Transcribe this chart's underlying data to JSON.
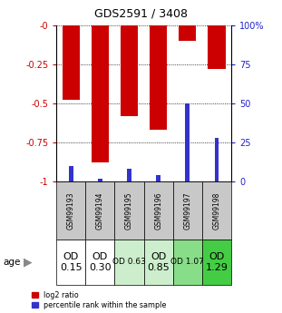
{
  "title": "GDS2591 / 3408",
  "samples": [
    "GSM99193",
    "GSM99194",
    "GSM99195",
    "GSM99196",
    "GSM99197",
    "GSM99198"
  ],
  "log2_ratios": [
    -0.48,
    -0.88,
    -0.58,
    -0.67,
    -0.1,
    -0.28
  ],
  "percentile_ranks": [
    10,
    2,
    8,
    4,
    50,
    28
  ],
  "ylim_left": [
    -1.0,
    0.0
  ],
  "ylim_right": [
    0,
    100
  ],
  "yticks_left": [
    0.0,
    -0.25,
    -0.5,
    -0.75,
    -1.0
  ],
  "yticks_right": [
    0,
    25,
    50,
    75,
    100
  ],
  "ytick_labels_left": [
    "-0",
    "-0.25",
    "-0.5",
    "-0.75",
    "-1"
  ],
  "ytick_labels_right": [
    "0",
    "25",
    "50",
    "75",
    "100%"
  ],
  "bar_color_red": "#cc0000",
  "bar_color_blue": "#3333cc",
  "grid_color": "#000000",
  "sample_bg_color": "#c8c8c8",
  "age_labels": [
    "OD\n0.15",
    "OD\n0.30",
    "OD 0.63",
    "OD\n0.85",
    "OD 1.07",
    "OD\n1.29"
  ],
  "age_bg_colors": [
    "#ffffff",
    "#ffffff",
    "#cceecc",
    "#cceecc",
    "#88dd88",
    "#44cc44"
  ],
  "age_font_sizes": [
    8,
    8,
    6.5,
    8,
    6.5,
    8
  ],
  "legend_red": "log2 ratio",
  "legend_blue": "percentile rank within the sample",
  "left_label_color": "#cc0000",
  "right_label_color": "#2222cc"
}
